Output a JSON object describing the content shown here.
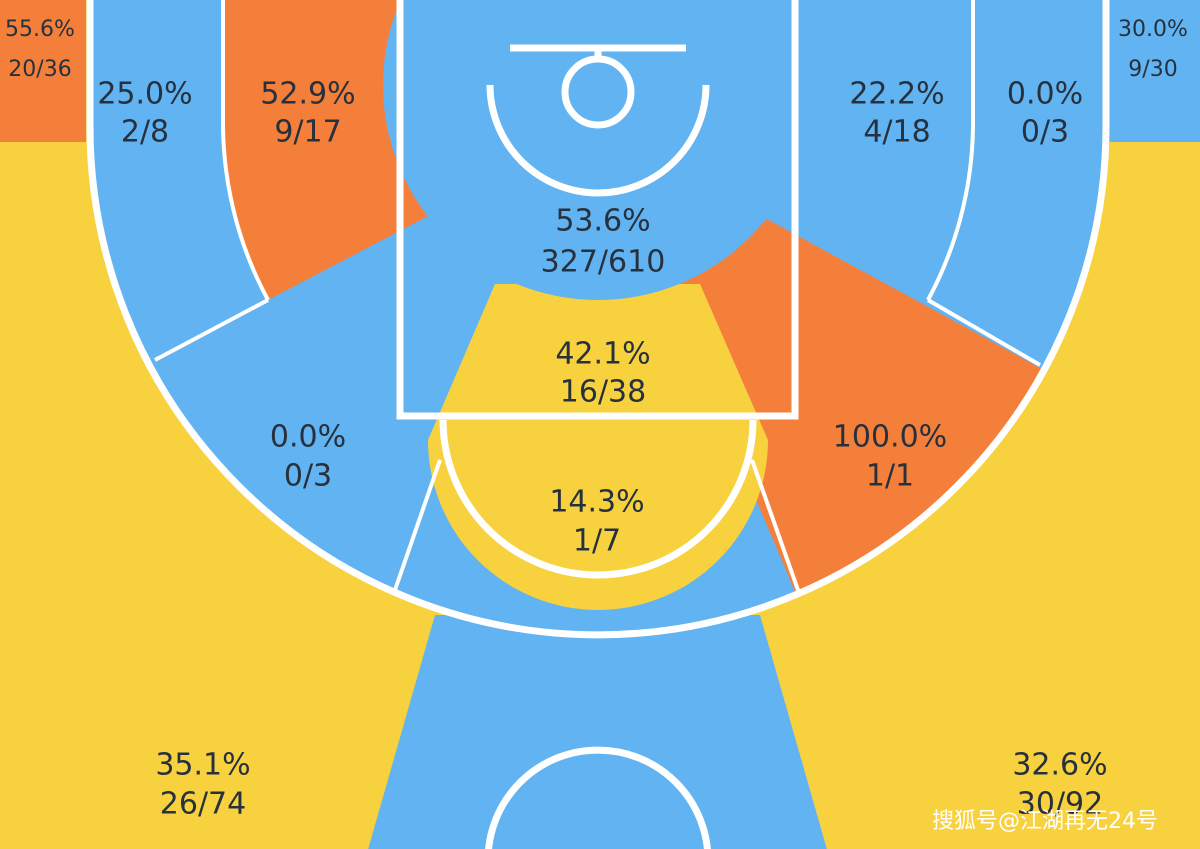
{
  "zones": [
    {
      "pct": "55.6%",
      "shots": "20/36"
    },
    {
      "pct": "25.0%",
      "shots": "2/8"
    },
    {
      "pct": "52.9%",
      "shots": "9/17"
    },
    {
      "pct": "53.6%",
      "shots": "327/610"
    },
    {
      "pct": "22.2%",
      "shots": "4/18"
    },
    {
      "pct": "0.0%",
      "shots": "0/3"
    },
    {
      "pct": "30.0%",
      "shots": "9/30"
    },
    {
      "pct": "42.1%",
      "shots": "16/38"
    },
    {
      "pct": "0.0%",
      "shots": "0/3"
    },
    {
      "pct": "14.3%",
      "shots": "1/7"
    },
    {
      "pct": "100.0%",
      "shots": "1/1"
    },
    {
      "pct": "35.1%",
      "shots": "26/74"
    },
    {
      "pct": "32.6%",
      "shots": "30/92"
    }
  ],
  "watermark": "搜狐号@江湖再无24号"
}
